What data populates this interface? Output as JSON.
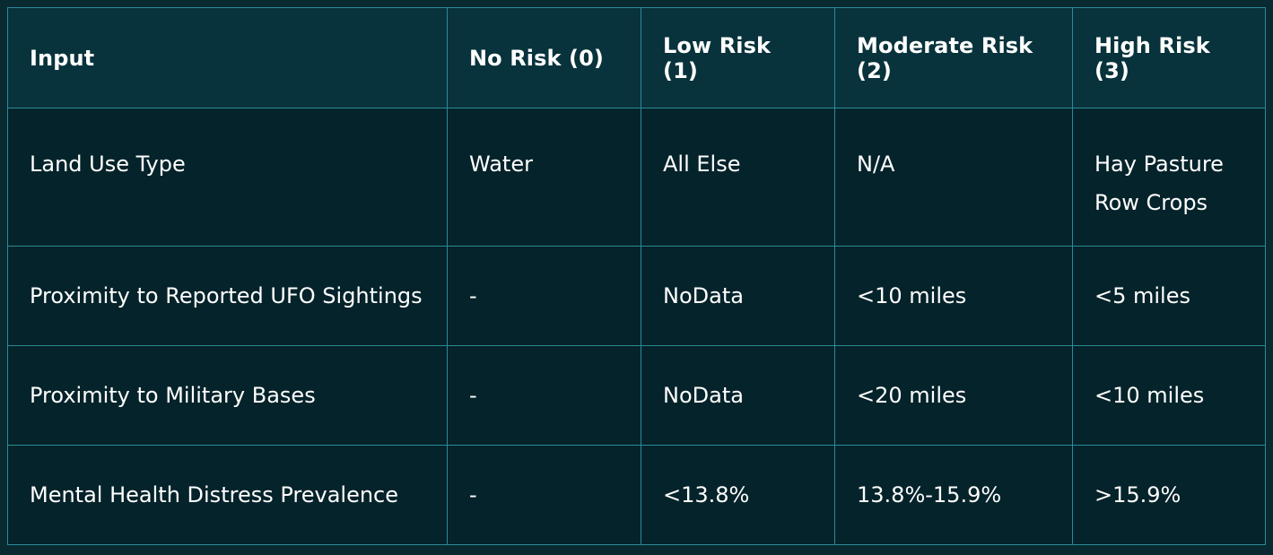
{
  "table": {
    "headers": [
      "Input",
      "No Risk (0)",
      "Low Risk (1)",
      "Moderate Risk (2)",
      "High Risk (3)"
    ],
    "rows": [
      {
        "input": "Land Use Type",
        "no_risk": "Water",
        "low_risk": "All Else",
        "moderate_risk": "N/A",
        "high_risk": [
          "Hay Pasture",
          "Row Crops"
        ]
      },
      {
        "input": "Proximity to Reported UFO Sightings",
        "no_risk": "-",
        "low_risk": "NoData",
        "moderate_risk": "<10 miles",
        "high_risk": "<5 miles"
      },
      {
        "input": "Proximity to Military Bases",
        "no_risk": "-",
        "low_risk": "NoData",
        "moderate_risk": "<20 miles",
        "high_risk": "<10 miles"
      },
      {
        "input": "Mental Health Distress Prevalence",
        "no_risk": "-",
        "low_risk": "<13.8%",
        "moderate_risk": "13.8%-15.9%",
        "high_risk": ">15.9%"
      }
    ]
  },
  "colors": {
    "background": "#092a31",
    "header_bg": "#08333c",
    "cell_bg": "#05232a",
    "border": "#2c8a97",
    "text": "#ffffff"
  }
}
